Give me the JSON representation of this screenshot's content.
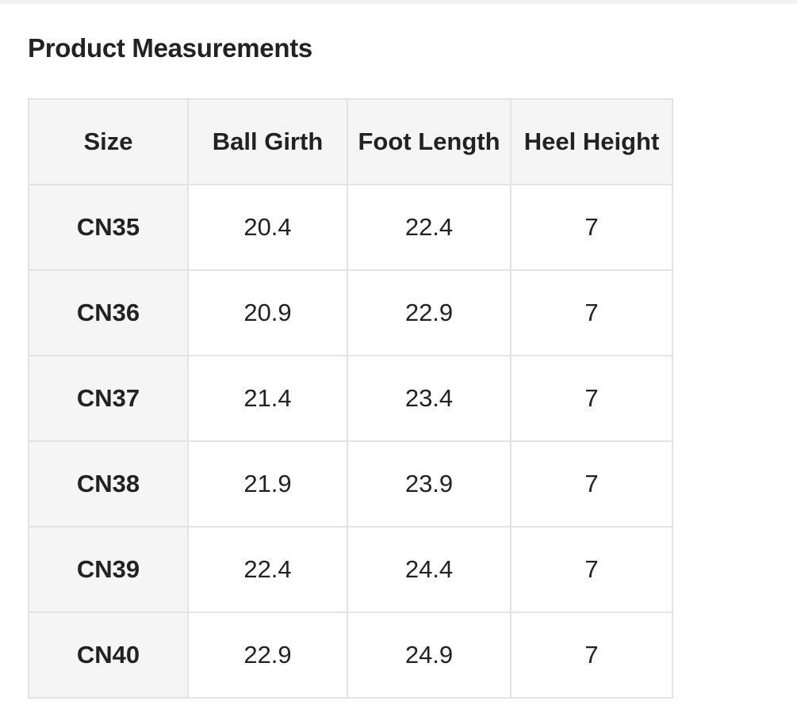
{
  "title": "Product Measurements",
  "table": {
    "headers": [
      "Size",
      "Ball Girth",
      "Foot Length",
      "Heel Height"
    ],
    "rows": [
      [
        "CN35",
        "20.4",
        "22.4",
        "7"
      ],
      [
        "CN36",
        "20.9",
        "22.9",
        "7"
      ],
      [
        "CN37",
        "21.4",
        "23.4",
        "7"
      ],
      [
        "CN38",
        "21.9",
        "23.9",
        "7"
      ],
      [
        "CN39",
        "22.4",
        "24.4",
        "7"
      ],
      [
        "CN40",
        "22.9",
        "24.9",
        "7"
      ]
    ]
  }
}
